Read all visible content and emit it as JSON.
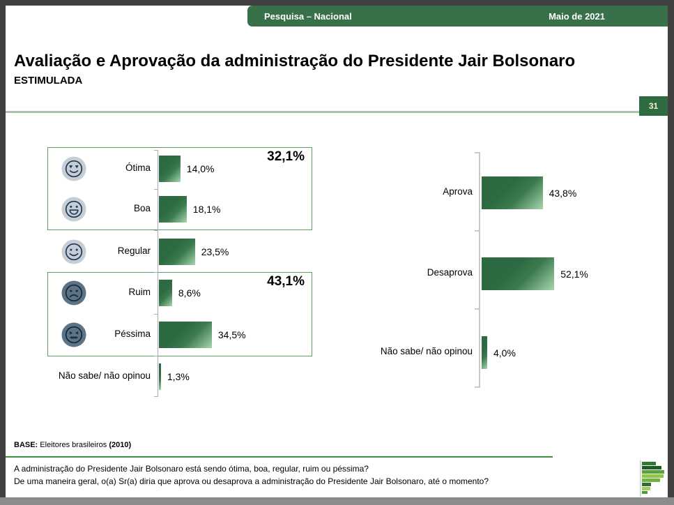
{
  "header": {
    "left_label": "Pesquisa – Nacional",
    "right_label": "Maio de 2021"
  },
  "title": "Avaliação e Aprovação da administração do Presidente Jair Bolsonaro",
  "subtitle": "ESTIMULADA",
  "page_number": "31",
  "colors": {
    "header_green": "#38704A",
    "bar_green_dark": "#2D6941",
    "bar_green_light": "#A9D5AF",
    "group_box_border": "#5F9C63",
    "title_divider": "#A9C5A9",
    "footer_rule": "#3E8B46",
    "page_badge": "#2E6B42",
    "badge_text": "#F5F2CC",
    "icon_circle_light": "#C6CDD5",
    "icon_circle_dark": "#5D7384"
  },
  "chart_data": [
    {
      "type": "bar",
      "orientation": "horizontal",
      "categories": [
        "Ótima",
        "Boa",
        "Regular",
        "Ruim",
        "Péssima",
        "Não sabe/ não opinou"
      ],
      "values": [
        14.0,
        18.1,
        23.5,
        8.6,
        34.5,
        1.3
      ],
      "value_labels": [
        "14,0%",
        "18,1%",
        "23,5%",
        "8,6%",
        "34,5%",
        "1,3%"
      ],
      "icons": [
        "heart-eyes-face-icon",
        "grinning-face-icon",
        "smiling-face-icon",
        "frowning-face-icon",
        "angry-face-icon",
        null
      ],
      "groups": [
        {
          "label": "32,1%",
          "members": [
            "Ótima",
            "Boa"
          ],
          "sum": 32.1
        },
        {
          "label": "43,1%",
          "members": [
            "Ruim",
            "Péssima"
          ],
          "sum": 43.1
        }
      ]
    },
    {
      "type": "bar",
      "orientation": "horizontal",
      "categories": [
        "Aprova",
        "Desaprova",
        "Não sabe/ não opinou"
      ],
      "values": [
        43.8,
        52.1,
        4.0
      ],
      "value_labels": [
        "43,8%",
        "52,1%",
        "4,0%"
      ]
    }
  ],
  "footer": {
    "base_label": "BASE:",
    "base_text": "Eleitores brasileiros",
    "base_detail": "(2010)",
    "question1": "A administração do Presidente Jair Bolsonaro está sendo ótima, boa, regular, ruim ou péssima?",
    "question2": "De uma maneira geral, o(a) Sr(a) diria que aprova ou desaprova a administração do Presidente Jair Bolsonaro, até o momento?"
  }
}
